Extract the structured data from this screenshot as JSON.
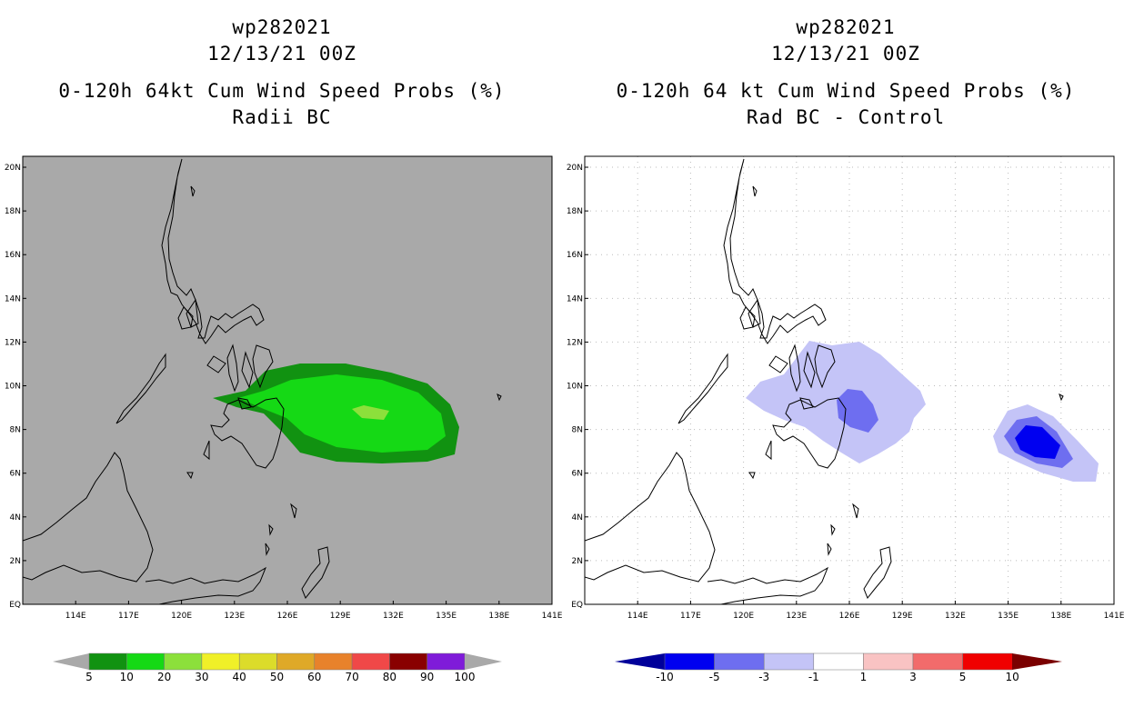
{
  "left_panel": {
    "title_line1": "wp282021",
    "title_line2": "12/13/21 00Z",
    "title_line3": "0-120h 64kt Cum Wind Speed Probs (%)",
    "title_line4": "Radii BC",
    "background_color": "#a9a9a9",
    "colorbar": {
      "colors": [
        "#119211",
        "#15d915",
        "#8ce03b",
        "#f0f028",
        "#dcdc2a",
        "#dfa928",
        "#e8822b",
        "#f04848",
        "#890000",
        "#7f1bd9"
      ],
      "labels": [
        "5",
        "10",
        "20",
        "30",
        "40",
        "50",
        "60",
        "70",
        "80",
        "90",
        "100"
      ]
    }
  },
  "right_panel": {
    "title_line1": "wp282021",
    "title_line2": "12/13/21 00Z",
    "title_line3": "0-120h 64 kt Cum Wind Speed Probs (%)",
    "title_line4": "Rad BC - Control",
    "background_color": "#ffffff",
    "colorbar": {
      "colors": [
        "#0000f0",
        "#6e6ef0",
        "#c4c4f7",
        "#ffffff",
        "#f9c3c3",
        "#f26b6b",
        "#f00000"
      ],
      "left_cap_color": "#00009a",
      "right_cap_color": "#7a0000",
      "labels": [
        "-10",
        "-5",
        "-3",
        "-1",
        "1",
        "3",
        "5",
        "10"
      ]
    }
  },
  "map": {
    "lon_labels": [
      "114E",
      "117E",
      "120E",
      "123E",
      "126E",
      "129E",
      "132E",
      "135E",
      "138E",
      "141E"
    ],
    "lat_labels": [
      "EQ",
      "2N",
      "4N",
      "6N",
      "8N",
      "10N",
      "12N",
      "14N",
      "16N",
      "18N",
      "20N"
    ],
    "lon_range": [
      111,
      141
    ],
    "lat_range": [
      0,
      20.5
    ]
  }
}
